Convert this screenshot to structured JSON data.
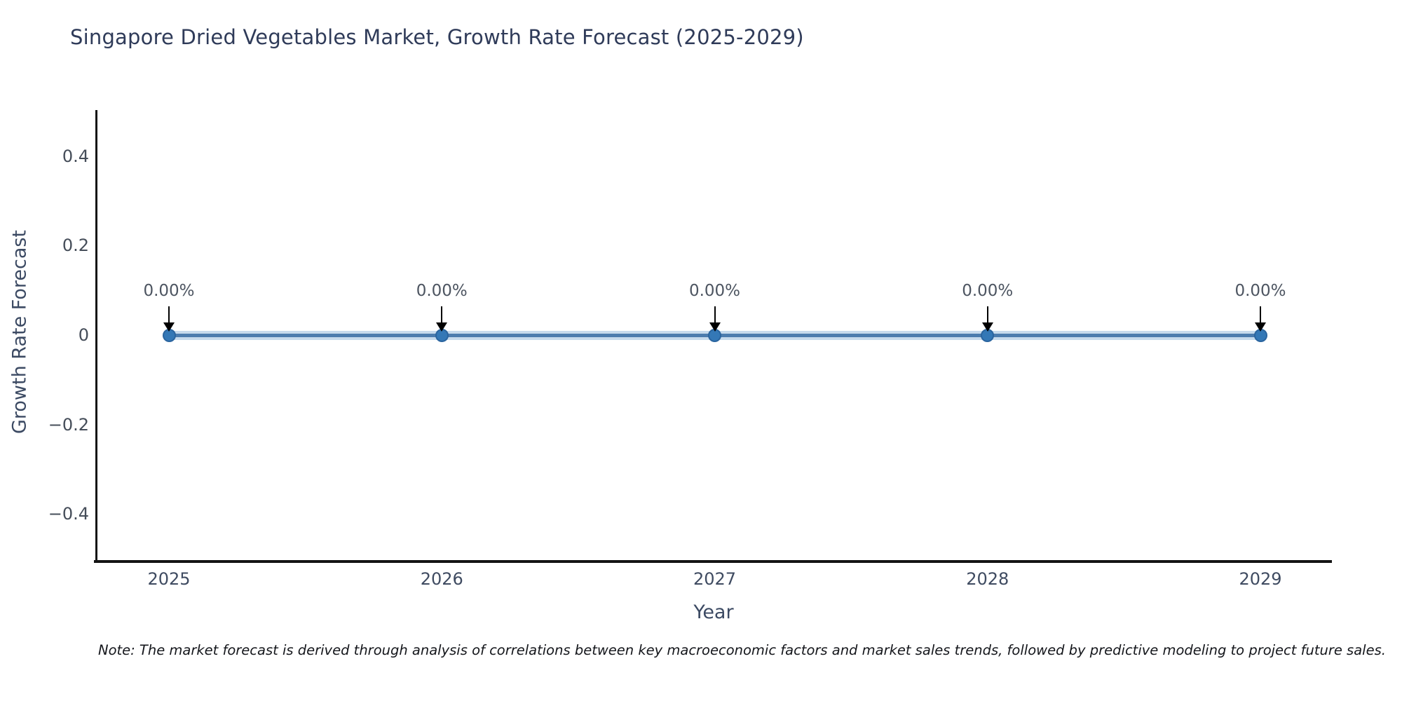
{
  "header": {
    "title": "Singapore Dried Vegetables Market, Growth Rate Forecast (2025-2029)"
  },
  "footnote": {
    "text": "Note: The market forecast is derived through analysis of correlations between key macroeconomic factors and market sales trends, followed by predictive modeling to project future sales."
  },
  "chart_data": {
    "type": "line",
    "title": "Singapore Dried Vegetables Market, Growth Rate Forecast (2025-2029)",
    "xlabel": "Year",
    "ylabel": "Growth Rate Forecast",
    "categories": [
      "2025",
      "2026",
      "2027",
      "2028",
      "2029"
    ],
    "series": [
      {
        "name": "Growth Rate Forecast",
        "values": [
          0,
          0,
          0,
          0,
          0
        ]
      }
    ],
    "point_labels": [
      "0.00%",
      "0.00%",
      "0.00%",
      "0.00%",
      "0.00%"
    ],
    "y_ticks": [
      0.4,
      0.2,
      0,
      -0.2,
      -0.4
    ],
    "ylim": [
      -0.5,
      0.5
    ],
    "grid": false,
    "legend_position": "none",
    "colors": {
      "line": "#4c7cae",
      "line_glow": "#c6daec",
      "marker": "#3478b6",
      "marker_edge": "#2b659f",
      "annotation_arrow": "#000000",
      "axis_spine": "#141414",
      "title_text": "#2f3b59"
    }
  }
}
